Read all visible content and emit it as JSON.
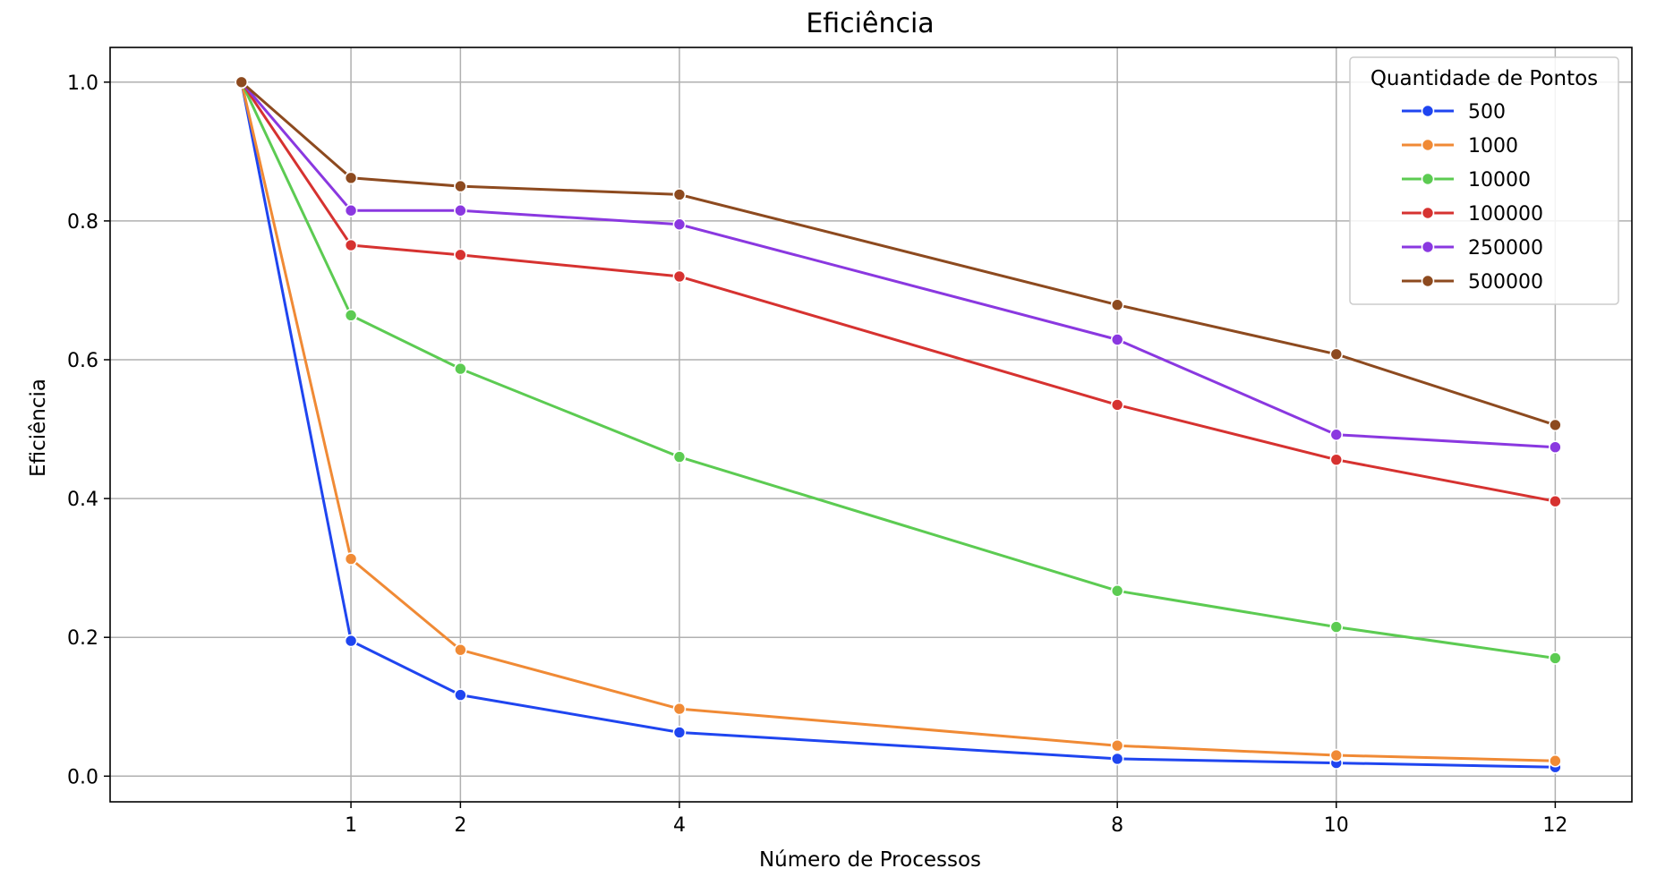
{
  "chart_data": {
    "type": "line",
    "title": "Eficiência",
    "xlabel": "Número de Processos",
    "ylabel": "Eficiência",
    "x": [
      0,
      1,
      2,
      4,
      8,
      10,
      12
    ],
    "xticks": [
      1,
      2,
      4,
      8,
      10,
      12
    ],
    "xlim": [
      -1.2,
      12.7
    ],
    "yticks": [
      0.0,
      0.2,
      0.4,
      0.6,
      0.8,
      1.0
    ],
    "ytick_labels": [
      "0.0",
      "0.2",
      "0.4",
      "0.6",
      "0.8",
      "1.0"
    ],
    "ylim": [
      -0.037,
      1.05
    ],
    "grid": true,
    "legend": {
      "title": "Quantidade de Pontos",
      "placement": "top-right"
    },
    "series": [
      {
        "name": "500",
        "color": "#1f45f0",
        "values": [
          1.0,
          0.195,
          0.117,
          0.063,
          0.025,
          0.019,
          0.013
        ]
      },
      {
        "name": "1000",
        "color": "#f08a35",
        "values": [
          1.0,
          0.313,
          0.182,
          0.097,
          0.044,
          0.03,
          0.022
        ]
      },
      {
        "name": "10000",
        "color": "#5ccb52",
        "values": [
          1.0,
          0.664,
          0.587,
          0.46,
          0.267,
          0.215,
          0.17
        ]
      },
      {
        "name": "100000",
        "color": "#d63230",
        "values": [
          1.0,
          0.765,
          0.751,
          0.72,
          0.535,
          0.456,
          0.396
        ]
      },
      {
        "name": "250000",
        "color": "#8a38e0",
        "values": [
          1.0,
          0.815,
          0.815,
          0.795,
          0.629,
          0.492,
          0.474
        ]
      },
      {
        "name": "500000",
        "color": "#8d4a1f",
        "values": [
          1.0,
          0.862,
          0.85,
          0.838,
          0.679,
          0.608,
          0.506
        ]
      }
    ]
  }
}
